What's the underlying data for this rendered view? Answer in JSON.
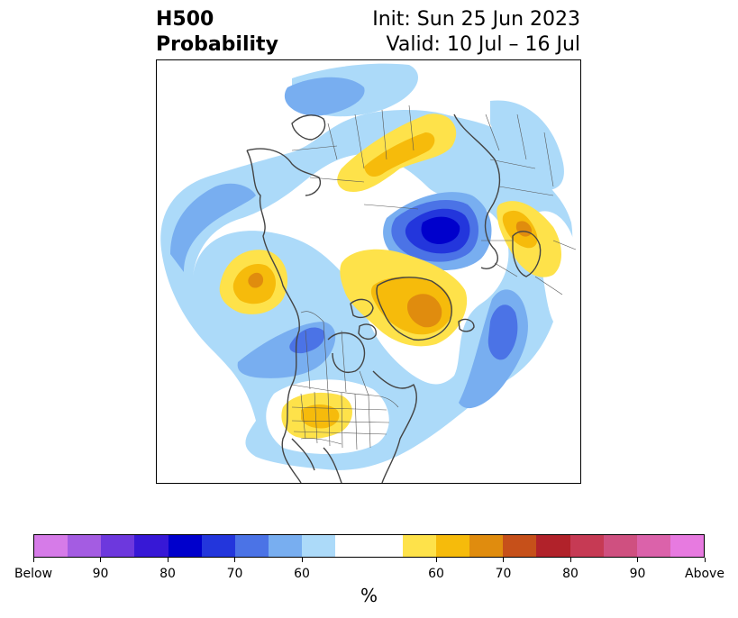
{
  "title": {
    "left_line1": "H500",
    "left_line2": "Probability",
    "right_line1": "Init: Sun 25 Jun 2023",
    "right_line2": "Valid: 10 Jul – 16 Jul"
  },
  "colors": {
    "coastline": "#444444",
    "border": "#555555",
    "below": [
      "#d67be8",
      "#a45ce2",
      "#6d38dd",
      "#3718d6",
      "#0000cc",
      "#2336dc",
      "#4b73e6",
      "#78aef0",
      "#acdaf9"
    ],
    "neutral": "#ffffff",
    "above": [
      "#fee24a",
      "#f6bb0b",
      "#e08c0e",
      "#c6501a",
      "#b1222a",
      "#c63a54",
      "#cf5080",
      "#db62aa",
      "#e77ae0"
    ]
  },
  "colorbar": {
    "ticks": [
      "Below",
      "90",
      "80",
      "70",
      "60",
      "60",
      "70",
      "80",
      "90",
      "Above"
    ],
    "label": "%"
  }
}
